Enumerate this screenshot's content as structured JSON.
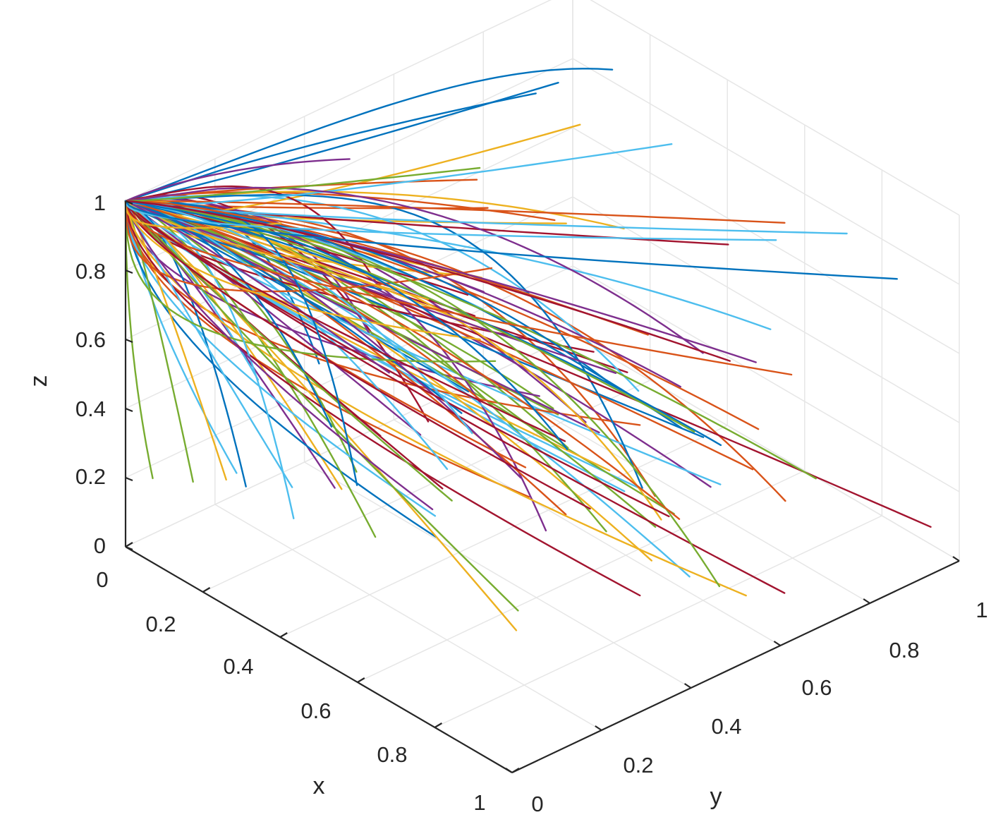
{
  "chart_data": {
    "type": "line",
    "subtype": "3d-trajectories",
    "title": "",
    "xlabel": "x",
    "ylabel": "y",
    "zlabel": "z",
    "xlim": [
      0,
      1
    ],
    "ylim": [
      0,
      1
    ],
    "zlim": [
      0,
      1
    ],
    "x_ticks": [
      "0",
      "0.2",
      "0.4",
      "0.6",
      "0.8",
      "1"
    ],
    "y_ticks": [
      "0",
      "0.2",
      "0.4",
      "0.6",
      "0.8",
      "1"
    ],
    "z_ticks": [
      "0",
      "0.2",
      "0.4",
      "0.6",
      "0.8",
      "1"
    ],
    "grid": true,
    "converge_point": [
      0,
      0,
      1
    ],
    "trajectory_count": 120,
    "palette": [
      "#0072bd",
      "#d95319",
      "#edb120",
      "#7e2f8e",
      "#77ac30",
      "#4dbeee",
      "#a2142f"
    ]
  }
}
